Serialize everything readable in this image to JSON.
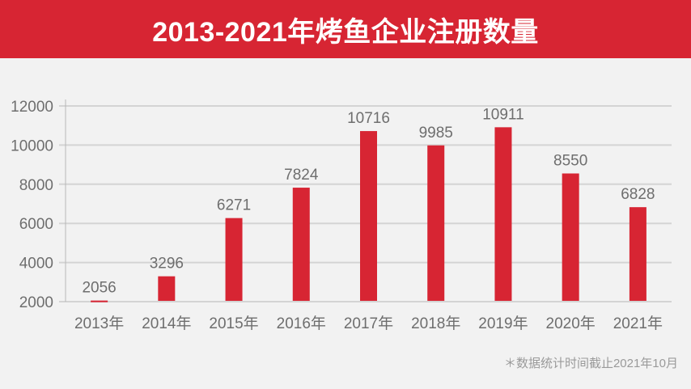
{
  "header": {
    "title": "2013-2021年烤鱼企业注册数量"
  },
  "footnote": "＊数据统计时间截止2021年10月",
  "colors": {
    "header_bg": "#d72533",
    "bar": "#d72533",
    "grid": "#d4d4d4",
    "axis_text": "#6e6e6e",
    "background": "#f2f2f2"
  },
  "chart_data": {
    "type": "bar",
    "title": "2013-2021年烤鱼企业注册数量",
    "xlabel": "",
    "ylabel": "",
    "categories": [
      "2013年",
      "2014年",
      "2015年",
      "2016年",
      "2017年",
      "2018年",
      "2019年",
      "2020年",
      "2021年"
    ],
    "values": [
      2056,
      3296,
      6271,
      7824,
      10716,
      9985,
      10911,
      8550,
      6828
    ],
    "ylim": [
      2000,
      12000
    ],
    "yticks": [
      2000,
      4000,
      6000,
      8000,
      10000,
      12000
    ],
    "grid": true,
    "data_labels": true,
    "legend": null,
    "annotation": "＊数据统计时间截止2021年10月"
  }
}
